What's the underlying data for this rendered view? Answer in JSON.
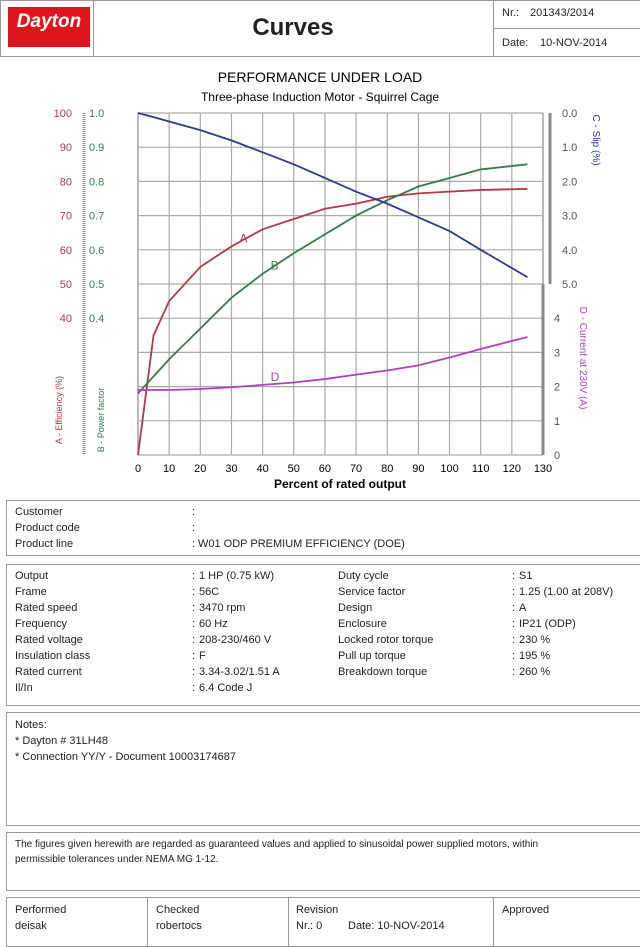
{
  "header": {
    "logo": "Dayton",
    "title": "Curves",
    "number_label": "Nr.:",
    "number": "201343/2014",
    "date_label": "Date:",
    "date": "10-NOV-2014"
  },
  "chart_data": {
    "type": "line",
    "title": "PERFORMANCE UNDER LOAD",
    "subtitle": "Three-phase Induction Motor - Squirrel Cage",
    "xlabel": "Percent of rated output",
    "xlim": [
      0,
      130
    ],
    "xticks": [
      "0",
      "10",
      "20",
      "30",
      "40",
      "50",
      "60",
      "70",
      "80",
      "90",
      "100",
      "110",
      "120",
      "130"
    ],
    "axes": {
      "efficiency": {
        "label": "A - Efficiency (%)",
        "ticks": [
          "40",
          "50",
          "60",
          "70",
          "80",
          "90",
          "100"
        ],
        "range": [
          0,
          100
        ],
        "color": "#b03a48"
      },
      "power_factor": {
        "label": "B - Power factor",
        "ticks": [
          "0.4",
          "0.5",
          "0.6",
          "0.7",
          "0.8",
          "0.9",
          "1.0"
        ],
        "range": [
          0,
          1
        ],
        "color": "#3a7a4a"
      },
      "slip": {
        "label": "C - Slip (%)",
        "ticks": [
          "0.0",
          "1.0",
          "2.0",
          "3.0",
          "4.0",
          "5.0"
        ],
        "range": [
          0,
          10
        ],
        "inverted": true,
        "color": "#303a8a"
      },
      "current": {
        "label": "D - Current at 230V (A)",
        "ticks": [
          "0",
          "1",
          "2",
          "3",
          "4"
        ],
        "range": [
          0,
          10
        ],
        "color": "#b040c0"
      }
    },
    "x": [
      0,
      5,
      10,
      20,
      30,
      40,
      50,
      60,
      70,
      80,
      90,
      100,
      110,
      125
    ],
    "series": [
      {
        "name": "A",
        "axis": "efficiency",
        "color": "#b03a48",
        "values": [
          0,
          35,
          45,
          55,
          61,
          66,
          69,
          72,
          73.5,
          75.5,
          76.5,
          77,
          77.5,
          77.8
        ]
      },
      {
        "name": "B",
        "axis": "power_factor",
        "color": "#3a7a4a",
        "values": [
          0.18,
          0.23,
          0.28,
          0.37,
          0.46,
          0.53,
          0.59,
          0.645,
          0.7,
          0.745,
          0.785,
          0.81,
          0.835,
          0.85
        ]
      },
      {
        "name": "C",
        "axis": "slip",
        "color": "#303a8a",
        "values": [
          0,
          0.12,
          0.25,
          0.5,
          0.8,
          1.15,
          1.5,
          1.9,
          2.3,
          2.65,
          3.05,
          3.45,
          4.0,
          4.8
        ]
      },
      {
        "name": "D",
        "axis": "current",
        "color": "#b040c0",
        "values": [
          1.9,
          1.9,
          1.9,
          1.93,
          1.98,
          2.05,
          2.12,
          2.22,
          2.35,
          2.47,
          2.62,
          2.85,
          3.1,
          3.45
        ]
      }
    ]
  },
  "customer": {
    "rows": [
      {
        "label": "Customer",
        "value": ""
      },
      {
        "label": "Product code",
        "value": ""
      },
      {
        "label": "Product line",
        "value": "W01 ODP PREMIUM EFFICIENCY (DOE)"
      }
    ]
  },
  "specs": {
    "left": [
      {
        "label": "Output",
        "value": "1 HP (0.75 kW)"
      },
      {
        "label": "Frame",
        "value": "56C"
      },
      {
        "label": "Rated speed",
        "value": "3470 rpm"
      },
      {
        "label": "Frequency",
        "value": "60 Hz"
      },
      {
        "label": "Rated voltage",
        "value": "208-230/460 V"
      },
      {
        "label": "Insulation class",
        "value": "F"
      },
      {
        "label": "Rated current",
        "value": "3.34-3.02/1.51 A"
      },
      {
        "label": "Il/In",
        "value": "6.4   Code J"
      }
    ],
    "right": [
      {
        "label": "Duty cycle",
        "value": "S1"
      },
      {
        "label": "Service factor",
        "value": "1.25   (1.00 at 208V)"
      },
      {
        "label": "Design",
        "value": "A"
      },
      {
        "label": "Enclosure",
        "value": "IP21 (ODP)"
      },
      {
        "label": "Locked rotor torque",
        "value": "230 %"
      },
      {
        "label": "Pull up torque",
        "value": "195 %"
      },
      {
        "label": "Breakdown torque",
        "value": "260 %"
      }
    ]
  },
  "notes": {
    "title": "Notes:",
    "lines": [
      "* Dayton # 31LH48",
      "* Connection YY/Y - Document 10003174687"
    ]
  },
  "disclaimer": {
    "line1": "The figures given herewith are regarded as guaranteed values and applied to sinusoidal  power supplied motors, within",
    "line2": "permissible tolerances under NEMA MG 1-12."
  },
  "footer": {
    "performed_label": "Performed",
    "performed": "deisak",
    "checked_label": "Checked",
    "checked": "robertocs",
    "revision_label": "Revision",
    "revision_nr": "Nr.: 0",
    "revision_date": "Date: 10-NOV-2014",
    "approved_label": "Approved"
  }
}
